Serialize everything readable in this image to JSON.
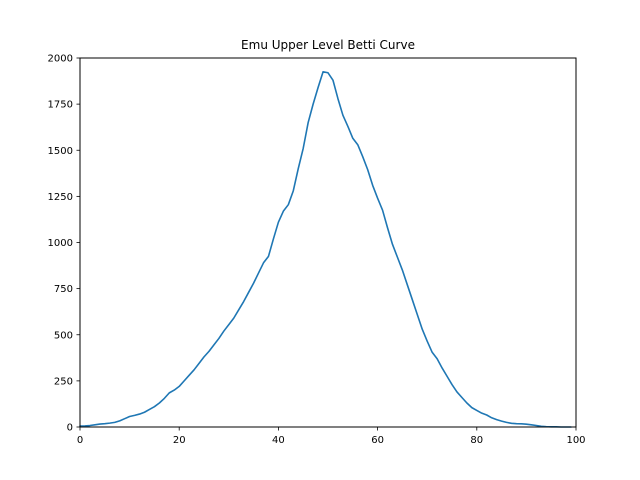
{
  "chart_data": {
    "type": "line",
    "title": "Emu Upper Level Betti Curve",
    "xlabel": "",
    "ylabel": "",
    "xlim": [
      0,
      100
    ],
    "ylim": [
      0,
      2000
    ],
    "x_ticks": [
      0,
      20,
      40,
      60,
      80,
      100
    ],
    "y_ticks": [
      0,
      250,
      500,
      750,
      1000,
      1250,
      1500,
      1750,
      2000
    ],
    "grid": false,
    "legend": false,
    "series": [
      {
        "color": "#1f77b4",
        "x": [
          0,
          1,
          2,
          3,
          4,
          5,
          6,
          7,
          8,
          9,
          10,
          11,
          12,
          13,
          14,
          15,
          16,
          17,
          18,
          19,
          20,
          21,
          22,
          23,
          24,
          25,
          26,
          27,
          28,
          29,
          30,
          31,
          32,
          33,
          34,
          35,
          36,
          37,
          38,
          39,
          40,
          41,
          42,
          43,
          44,
          45,
          46,
          47,
          48,
          49,
          50,
          51,
          52,
          53,
          54,
          55,
          56,
          57,
          58,
          59,
          60,
          61,
          62,
          63,
          64,
          65,
          66,
          67,
          68,
          69,
          70,
          71,
          72,
          73,
          74,
          75,
          76,
          77,
          78,
          79,
          80,
          81,
          82,
          83,
          84,
          85,
          86,
          87,
          88,
          89,
          90,
          91,
          92,
          93,
          94,
          95,
          96,
          97,
          98,
          99
        ],
        "y": [
          5,
          6,
          8,
          12,
          16,
          18,
          21,
          25,
          33,
          45,
          57,
          63,
          70,
          80,
          95,
          110,
          130,
          155,
          185,
          200,
          220,
          250,
          280,
          310,
          345,
          380,
          410,
          445,
          480,
          520,
          555,
          590,
          635,
          680,
          730,
          780,
          835,
          890,
          925,
          1020,
          1110,
          1170,
          1205,
          1280,
          1400,
          1510,
          1650,
          1750,
          1840,
          1925,
          1920,
          1880,
          1780,
          1690,
          1630,
          1565,
          1530,
          1465,
          1395,
          1310,
          1240,
          1175,
          1080,
          990,
          920,
          850,
          770,
          690,
          610,
          530,
          465,
          405,
          370,
          320,
          275,
          230,
          190,
          160,
          130,
          105,
          90,
          75,
          65,
          50,
          40,
          32,
          25,
          20,
          18,
          17,
          15,
          12,
          8,
          4,
          2,
          1,
          1,
          0,
          0,
          0
        ]
      }
    ]
  }
}
